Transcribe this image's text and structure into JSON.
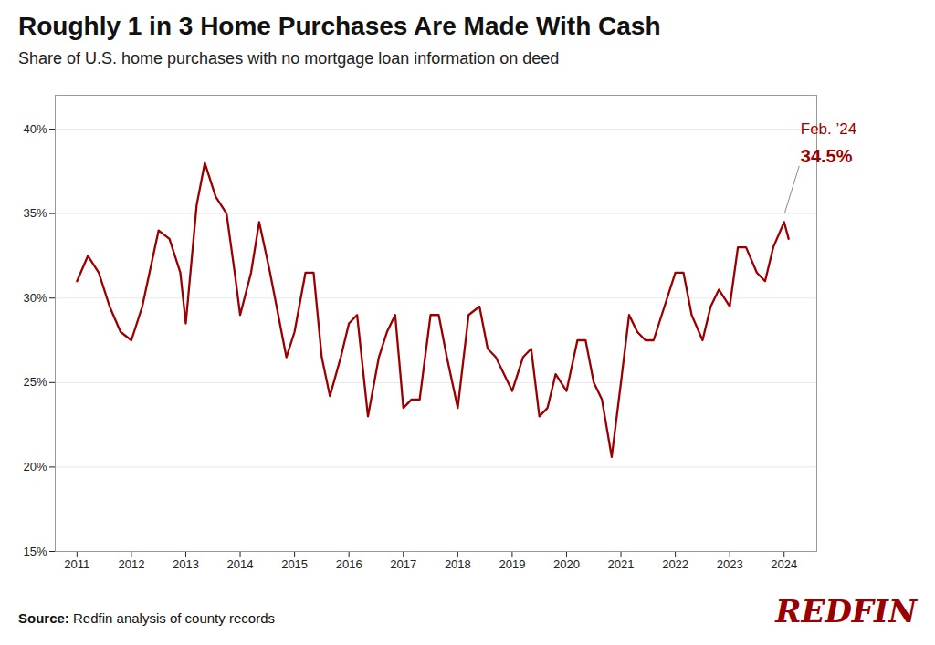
{
  "chart_data": {
    "type": "line",
    "title": "Roughly 1 in 3 Home Purchases Are Made With Cash",
    "subtitle": "Share of U.S. home purchases with no mortgage loan information on deed",
    "source_label": "Source:",
    "source": "Redfin analysis of county records",
    "logo": "REDFIN",
    "color": "#9B0000",
    "grid": true,
    "xlim": [
      2010.6,
      2024.6
    ],
    "xticks": [
      2011,
      2012,
      2013,
      2014,
      2015,
      2016,
      2017,
      2018,
      2019,
      2020,
      2021,
      2022,
      2023,
      2024
    ],
    "ylim": [
      15,
      42
    ],
    "yticks": [
      {
        "value": 15,
        "label": "15%"
      },
      {
        "value": 20,
        "label": "20%"
      },
      {
        "value": 25,
        "label": "25%"
      },
      {
        "value": 30,
        "label": "30%"
      },
      {
        "value": 35,
        "label": "35%"
      },
      {
        "value": 40,
        "label": "40%"
      }
    ],
    "x": [
      2011.0,
      2011.2,
      2011.4,
      2011.6,
      2011.8,
      2012.0,
      2012.2,
      2012.5,
      2012.7,
      2012.9,
      2013.0,
      2013.2,
      2013.35,
      2013.55,
      2013.75,
      2013.9,
      2014.0,
      2014.2,
      2014.35,
      2014.55,
      2014.7,
      2014.85,
      2015.0,
      2015.2,
      2015.35,
      2015.5,
      2015.65,
      2015.85,
      2016.0,
      2016.15,
      2016.35,
      2016.55,
      2016.7,
      2016.85,
      2017.0,
      2017.15,
      2017.3,
      2017.5,
      2017.65,
      2017.8,
      2018.0,
      2018.2,
      2018.4,
      2018.55,
      2018.7,
      2018.85,
      2019.0,
      2019.2,
      2019.35,
      2019.5,
      2019.65,
      2019.8,
      2020.0,
      2020.2,
      2020.35,
      2020.5,
      2020.65,
      2020.83,
      2021.0,
      2021.15,
      2021.3,
      2021.45,
      2021.6,
      2021.8,
      2022.0,
      2022.15,
      2022.3,
      2022.5,
      2022.65,
      2022.8,
      2023.0,
      2023.15,
      2023.3,
      2023.5,
      2023.65,
      2023.8,
      2024.0,
      2024.083
    ],
    "values": [
      31.0,
      32.5,
      31.5,
      29.5,
      28.0,
      27.5,
      29.5,
      34.0,
      33.5,
      31.5,
      28.5,
      35.5,
      38.0,
      36.0,
      35.0,
      31.5,
      29.0,
      31.5,
      34.5,
      31.5,
      29.0,
      26.5,
      28.0,
      31.5,
      31.5,
      26.5,
      24.2,
      26.5,
      28.5,
      29.0,
      23.0,
      26.5,
      28.0,
      29.0,
      23.5,
      24.0,
      24.0,
      29.0,
      29.0,
      26.5,
      23.5,
      29.0,
      29.5,
      27.0,
      26.5,
      25.5,
      24.5,
      26.5,
      27.0,
      23.0,
      23.5,
      25.5,
      24.5,
      27.5,
      27.5,
      25.0,
      24.0,
      20.6,
      25.0,
      29.0,
      28.0,
      27.5,
      27.5,
      29.5,
      31.5,
      31.5,
      29.0,
      27.5,
      29.5,
      30.5,
      29.5,
      33.0,
      33.0,
      31.5,
      31.0,
      33.0,
      34.5,
      33.5
    ],
    "annotations": [
      {
        "x": 2024.0,
        "y": 34.5,
        "label": "Feb. ’24",
        "value_label": "34.5%"
      }
    ]
  }
}
